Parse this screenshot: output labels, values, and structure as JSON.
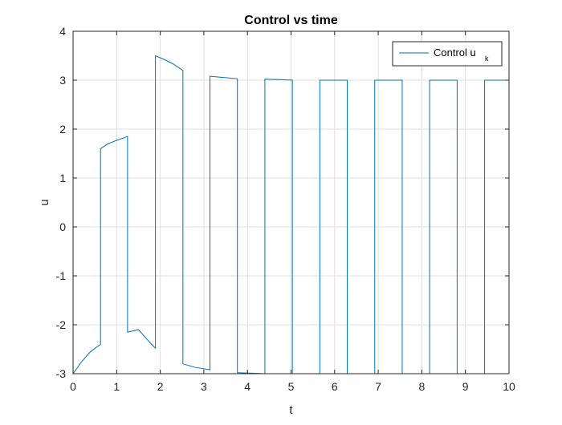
{
  "chart_data": {
    "type": "line",
    "title": "Control vs time",
    "xlabel": "t",
    "ylabel": "u",
    "xlim": [
      0,
      10
    ],
    "ylim": [
      -3,
      4
    ],
    "xticks": [
      "0",
      "1",
      "2",
      "3",
      "4",
      "5",
      "6",
      "7",
      "8",
      "9",
      "10"
    ],
    "yticks": [
      "-3",
      "-2",
      "-1",
      "0",
      "1",
      "2",
      "3",
      "4"
    ],
    "grid": true,
    "legend_position": "top-right",
    "color": "#0072BD",
    "series": [
      {
        "name": "Control u",
        "name_subscript": "k",
        "x": [
          0,
          0,
          0.2,
          0.4,
          0.63,
          0.63,
          0.8,
          1.0,
          1.25,
          1.25,
          1.5,
          1.8,
          1.89,
          1.89,
          2.1,
          2.3,
          2.52,
          2.52,
          2.8,
          3.14,
          3.14,
          3.4,
          3.77,
          3.77,
          4.1,
          4.4,
          4.4,
          4.8,
          5.03,
          5.03,
          5.4,
          5.66,
          5.66,
          6.0,
          6.29,
          6.29,
          6.6,
          6.92,
          6.92,
          7.2,
          7.55,
          7.55,
          7.9,
          8.18,
          8.18,
          8.5,
          8.81,
          8.81,
          9.1,
          9.44,
          9.44,
          9.7,
          10
        ],
        "y": [
          -1.35,
          -3.0,
          -2.75,
          -2.55,
          -2.4,
          1.6,
          1.7,
          1.77,
          1.85,
          -2.15,
          -2.1,
          -2.4,
          -2.48,
          3.5,
          3.42,
          3.33,
          3.2,
          -2.8,
          -2.87,
          -2.92,
          3.08,
          3.06,
          3.03,
          -2.98,
          -2.99,
          -3.0,
          3.02,
          3.01,
          3.0,
          -3.0,
          -3.0,
          -3.0,
          3.0,
          3.0,
          3.0,
          -3.0,
          -3.0,
          -3.0,
          3.0,
          3.0,
          3.0,
          -3.0,
          -3.0,
          -3.0,
          3.0,
          3.0,
          3.0,
          -3.0,
          -3.0,
          -3.0,
          3.0,
          3.0,
          3.0
        ]
      }
    ]
  }
}
